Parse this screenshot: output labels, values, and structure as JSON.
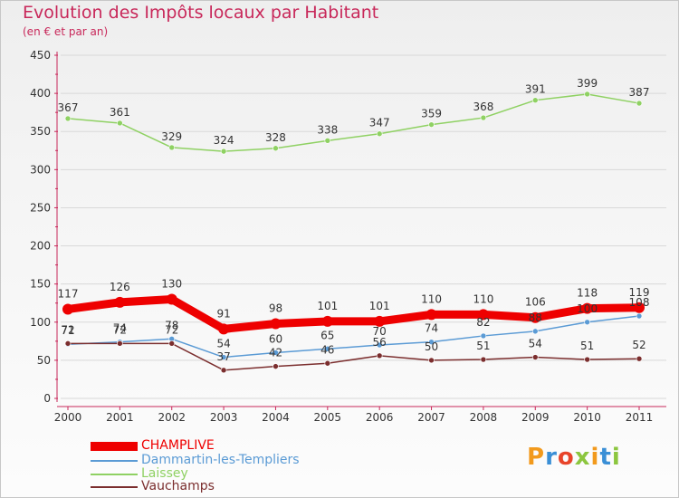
{
  "header": {
    "title": "Evolution des Impôts locaux par Habitant",
    "subtitle": "(en € et par an)"
  },
  "brand": {
    "logo_text": "Proxiti",
    "letter_colors": [
      "#f29a1d",
      "#3a8fd6",
      "#e8442a",
      "#8cc63f",
      "#f29a1d",
      "#3a8fd6",
      "#8cc63f"
    ]
  },
  "colors": {
    "title": "#c8285a",
    "axis": "#c8285a",
    "grid": "#d9d9d9"
  },
  "chart_data": {
    "type": "line",
    "title": "Evolution des Impôts locaux par Habitant",
    "subtitle": "(en € et par an)",
    "xlabel": "",
    "ylabel": "",
    "categories": [
      "2000",
      "2001",
      "2002",
      "2003",
      "2004",
      "2005",
      "2006",
      "2007",
      "2008",
      "2009",
      "2010",
      "2011"
    ],
    "ylim": [
      0,
      450
    ],
    "yticks": [
      0,
      50,
      100,
      150,
      200,
      250,
      300,
      350,
      400,
      450
    ],
    "grid": true,
    "legend_position": "bottom-left",
    "series": [
      {
        "name": "CHAMPLIVE",
        "color": "#ee0000",
        "label_color": "#333333",
        "values": [
          117,
          126,
          130,
          91,
          98,
          101,
          101,
          110,
          110,
          106,
          118,
          119
        ]
      },
      {
        "name": "Dammartin-les-Templiers",
        "color": "#5b9bd5",
        "label_color": "#333333",
        "values": [
          71,
          74,
          78,
          54,
          60,
          65,
          70,
          74,
          82,
          88,
          100,
          108
        ]
      },
      {
        "name": "Laissey",
        "color": "#8fd163",
        "label_color": "#333333",
        "values": [
          367,
          361,
          329,
          324,
          328,
          338,
          347,
          359,
          368,
          391,
          399,
          387
        ]
      },
      {
        "name": "Vauchamps",
        "color": "#7b2e2e",
        "label_color": "#333333",
        "values": [
          72,
          72,
          72,
          37,
          42,
          46,
          56,
          50,
          51,
          54,
          51,
          52
        ]
      }
    ]
  }
}
